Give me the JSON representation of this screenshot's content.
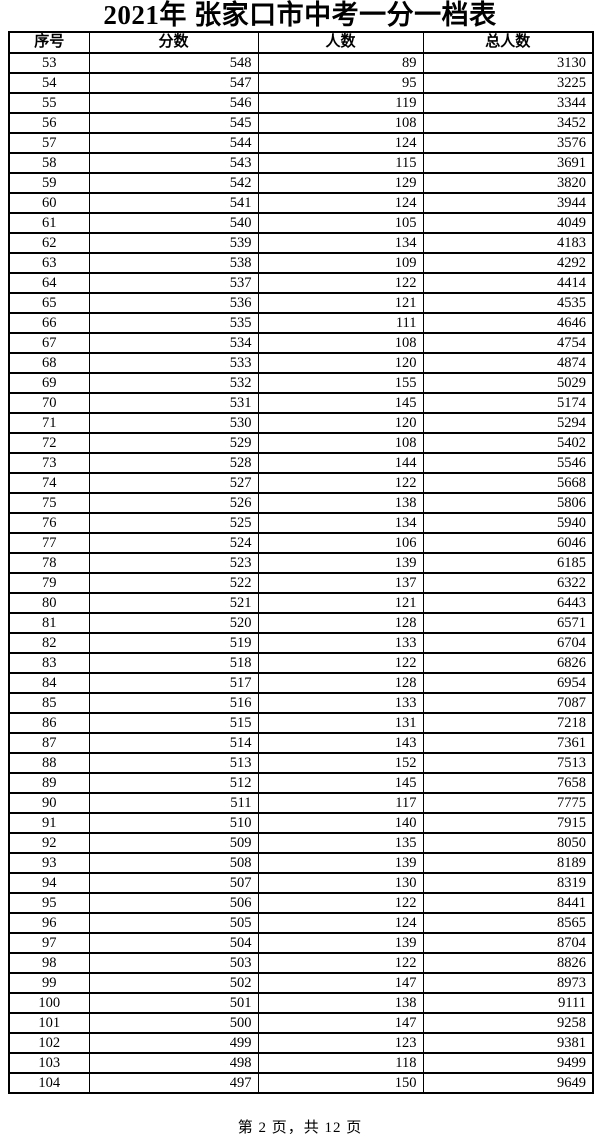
{
  "title": "2021年 张家口市中考一分一档表",
  "table": {
    "headers": [
      "序号",
      "分数",
      "人数",
      "总人数"
    ],
    "rows": [
      [
        "53",
        "548",
        "89",
        "3130"
      ],
      [
        "54",
        "547",
        "95",
        "3225"
      ],
      [
        "55",
        "546",
        "119",
        "3344"
      ],
      [
        "56",
        "545",
        "108",
        "3452"
      ],
      [
        "57",
        "544",
        "124",
        "3576"
      ],
      [
        "58",
        "543",
        "115",
        "3691"
      ],
      [
        "59",
        "542",
        "129",
        "3820"
      ],
      [
        "60",
        "541",
        "124",
        "3944"
      ],
      [
        "61",
        "540",
        "105",
        "4049"
      ],
      [
        "62",
        "539",
        "134",
        "4183"
      ],
      [
        "63",
        "538",
        "109",
        "4292"
      ],
      [
        "64",
        "537",
        "122",
        "4414"
      ],
      [
        "65",
        "536",
        "121",
        "4535"
      ],
      [
        "66",
        "535",
        "111",
        "4646"
      ],
      [
        "67",
        "534",
        "108",
        "4754"
      ],
      [
        "68",
        "533",
        "120",
        "4874"
      ],
      [
        "69",
        "532",
        "155",
        "5029"
      ],
      [
        "70",
        "531",
        "145",
        "5174"
      ],
      [
        "71",
        "530",
        "120",
        "5294"
      ],
      [
        "72",
        "529",
        "108",
        "5402"
      ],
      [
        "73",
        "528",
        "144",
        "5546"
      ],
      [
        "74",
        "527",
        "122",
        "5668"
      ],
      [
        "75",
        "526",
        "138",
        "5806"
      ],
      [
        "76",
        "525",
        "134",
        "5940"
      ],
      [
        "77",
        "524",
        "106",
        "6046"
      ],
      [
        "78",
        "523",
        "139",
        "6185"
      ],
      [
        "79",
        "522",
        "137",
        "6322"
      ],
      [
        "80",
        "521",
        "121",
        "6443"
      ],
      [
        "81",
        "520",
        "128",
        "6571"
      ],
      [
        "82",
        "519",
        "133",
        "6704"
      ],
      [
        "83",
        "518",
        "122",
        "6826"
      ],
      [
        "84",
        "517",
        "128",
        "6954"
      ],
      [
        "85",
        "516",
        "133",
        "7087"
      ],
      [
        "86",
        "515",
        "131",
        "7218"
      ],
      [
        "87",
        "514",
        "143",
        "7361"
      ],
      [
        "88",
        "513",
        "152",
        "7513"
      ],
      [
        "89",
        "512",
        "145",
        "7658"
      ],
      [
        "90",
        "511",
        "117",
        "7775"
      ],
      [
        "91",
        "510",
        "140",
        "7915"
      ],
      [
        "92",
        "509",
        "135",
        "8050"
      ],
      [
        "93",
        "508",
        "139",
        "8189"
      ],
      [
        "94",
        "507",
        "130",
        "8319"
      ],
      [
        "95",
        "506",
        "122",
        "8441"
      ],
      [
        "96",
        "505",
        "124",
        "8565"
      ],
      [
        "97",
        "504",
        "139",
        "8704"
      ],
      [
        "98",
        "503",
        "122",
        "8826"
      ],
      [
        "99",
        "502",
        "147",
        "8973"
      ],
      [
        "100",
        "501",
        "138",
        "9111"
      ],
      [
        "101",
        "500",
        "147",
        "9258"
      ],
      [
        "102",
        "499",
        "123",
        "9381"
      ],
      [
        "103",
        "498",
        "118",
        "9499"
      ],
      [
        "104",
        "497",
        "150",
        "9649"
      ]
    ]
  },
  "footer": "第 2 页，共 12 页"
}
